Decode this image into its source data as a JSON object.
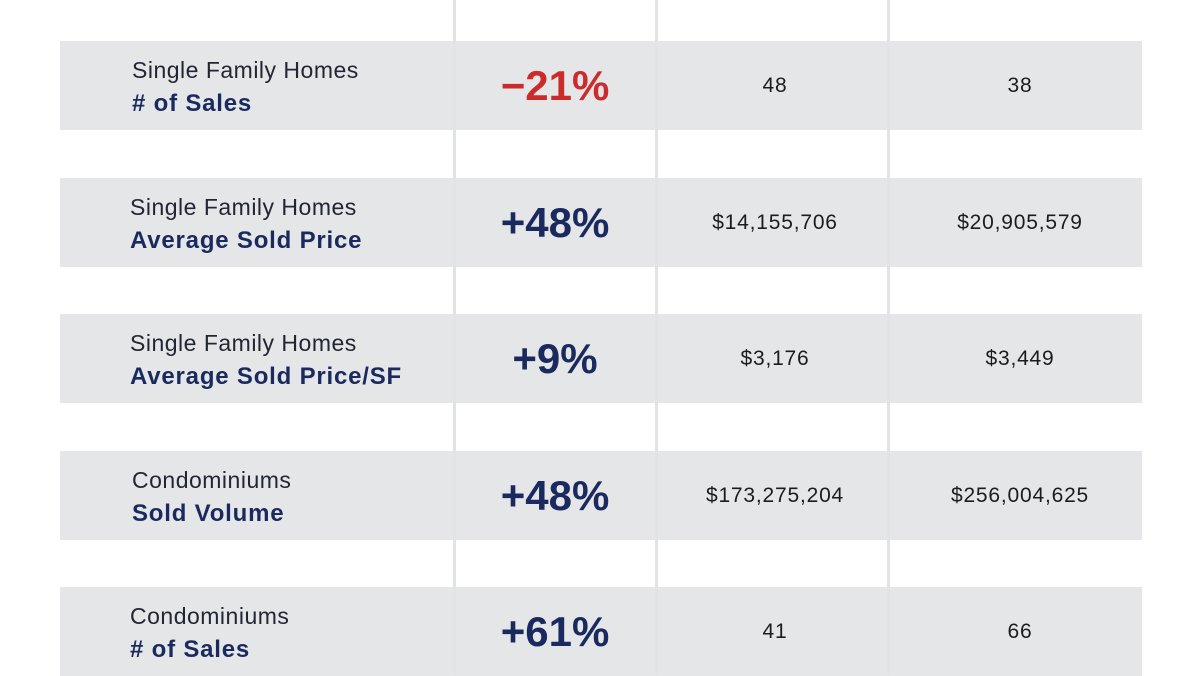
{
  "colors": {
    "navy": "#1b2a5e",
    "negative_red": "#cc2b2b",
    "row_background": "#e5e6e8"
  },
  "rows": [
    {
      "category": "Single Family Homes",
      "metric": "# of Sales",
      "change": "−21%",
      "change_direction": "negative",
      "value_1": "48",
      "value_2": "38"
    },
    {
      "category": "Single Family Homes",
      "metric": "Average Sold Price",
      "change": "+48%",
      "change_direction": "positive",
      "value_1": "$14,155,706",
      "value_2": "$20,905,579"
    },
    {
      "category": "Single Family Homes",
      "metric": "Average Sold Price/SF",
      "change": "+9%",
      "change_direction": "positive",
      "value_1": "$3,176",
      "value_2": "$3,449"
    },
    {
      "category": "Condominiums",
      "metric": "Sold Volume",
      "change": "+48%",
      "change_direction": "positive",
      "value_1": "$173,275,204",
      "value_2": "$256,004,625"
    },
    {
      "category": "Condominiums",
      "metric": "# of Sales",
      "change": "+61%",
      "change_direction": "positive",
      "value_1": "41",
      "value_2": "66"
    }
  ]
}
